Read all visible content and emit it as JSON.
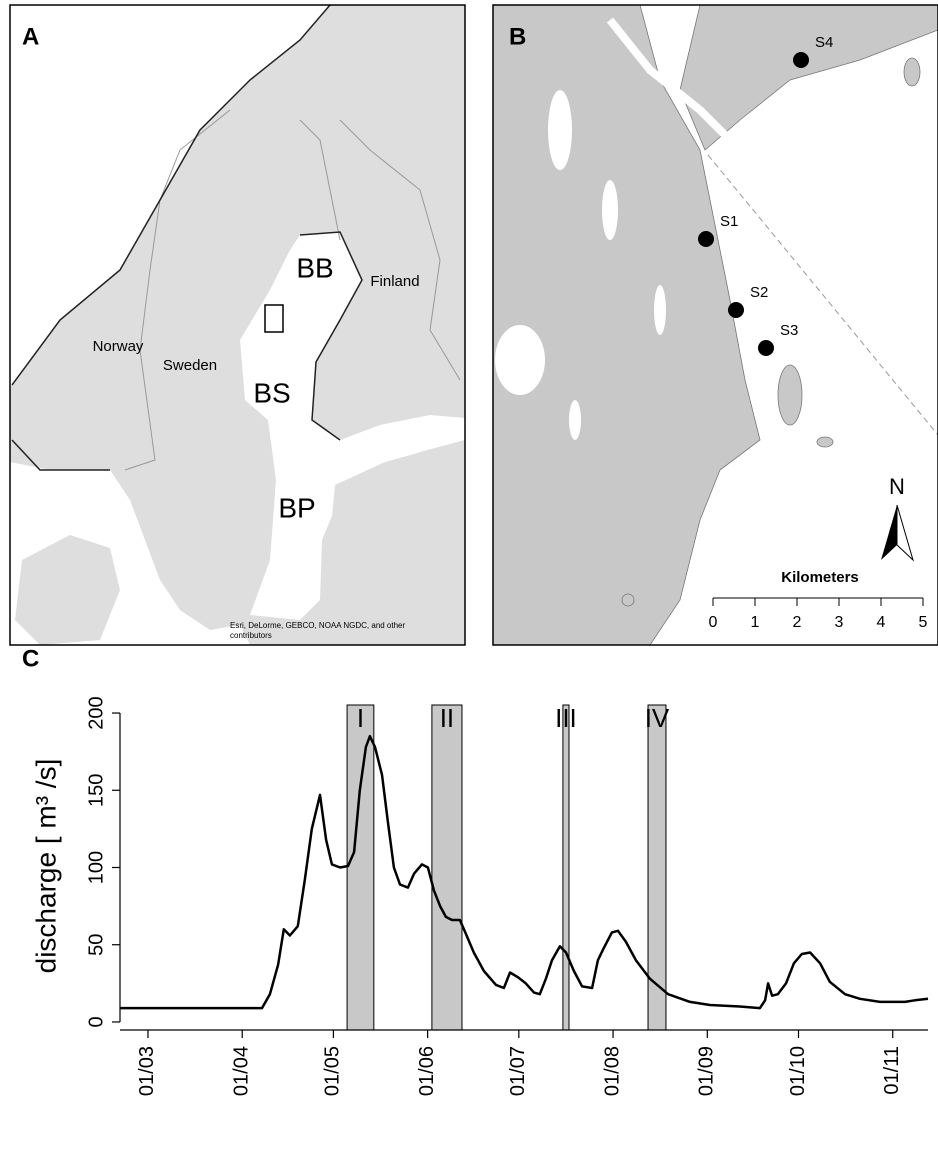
{
  "map_a": {
    "panel_label": "A",
    "labels": [
      "BB",
      "Finland",
      "Norway",
      "Sweden",
      "BS",
      "BP"
    ],
    "attribution": [
      "Esri, DeLorme, GEBCO, NOAA NGDC, and other",
      "contributors"
    ]
  },
  "map_b": {
    "panel_label": "B",
    "stations": [
      "S1",
      "S2",
      "S3",
      "S4"
    ],
    "north": "N",
    "scale_title": "Kilometers",
    "scale_ticks": [
      0,
      1,
      2,
      3,
      4,
      5
    ]
  },
  "chart_data": {
    "type": "line",
    "panel_label": "C",
    "y_label": "discharge [ m³ /s]",
    "x": [
      -9.2,
      37.5,
      40.1,
      42.8,
      44.7,
      46.7,
      49.3,
      51.6,
      53.9,
      56.6,
      58.6,
      60.5,
      63.2,
      65.8,
      67.8,
      69.7,
      71.7,
      73.0,
      74.7,
      77.0,
      78.9,
      80.9,
      82.9,
      85.5,
      87.5,
      90.1,
      92.1,
      94.1,
      96.1,
      98.0,
      100.0,
      102.6,
      104.6,
      107.2,
      110.5,
      114.5,
      117.1,
      119.1,
      121.7,
      124.3,
      127.0,
      128.9,
      130.9,
      132.9,
      135.5,
      137.5,
      140.1,
      142.8,
      146.1,
      148.0,
      150.0,
      152.6,
      154.6,
      157.2,
      160.5,
      165.1,
      171.1,
      178.3,
      184.9,
      194.7,
      201.3,
      203.0,
      204.0,
      205.3,
      207.2,
      209.9,
      212.5,
      215.1,
      217.8,
      221.1,
      224.3,
      229.3,
      234.2,
      240.8,
      249.0,
      252.3,
      256.6
    ],
    "series": [
      {
        "color": "#000000",
        "values": [
          9,
          9,
          18,
          37,
          60,
          56,
          62,
          92,
          125,
          147,
          118,
          102,
          100,
          101,
          110,
          150,
          178,
          185,
          178,
          160,
          130,
          100,
          89,
          87,
          96,
          102,
          100,
          85,
          75,
          68,
          66,
          66,
          57,
          45,
          33,
          24,
          22,
          32,
          29,
          25,
          19,
          18,
          28,
          40,
          49,
          45,
          33,
          23,
          22,
          40,
          48,
          58,
          59,
          52,
          40,
          28,
          18,
          13,
          11,
          10,
          9,
          14,
          25,
          17,
          18,
          25,
          38,
          44,
          45,
          38,
          26,
          18,
          15,
          13,
          13,
          14,
          15
        ]
      }
    ],
    "periods": [
      {
        "label": "I",
        "start": 65.5,
        "end": 74.3
      },
      {
        "label": "II",
        "start": 93.4,
        "end": 103.3
      },
      {
        "label": "III",
        "start": 136.5,
        "end": 138.5
      },
      {
        "label": "IV",
        "start": 164.5,
        "end": 170.4
      }
    ],
    "xlim": [
      -9.2,
      256.6
    ],
    "xticks": [
      {
        "value": 0,
        "label": "01/03"
      },
      {
        "value": 31,
        "label": "01/04"
      },
      {
        "value": 61,
        "label": "01/05"
      },
      {
        "value": 92,
        "label": "01/06"
      },
      {
        "value": 122,
        "label": "01/07"
      },
      {
        "value": 153,
        "label": "01/08"
      },
      {
        "value": 184,
        "label": "01/09"
      },
      {
        "value": 214,
        "label": "01/10"
      },
      {
        "value": 245,
        "label": "01/11"
      }
    ],
    "ylim": [
      -5.2,
      205.2
    ],
    "yticks": [
      0,
      50,
      100,
      150,
      200
    ]
  }
}
